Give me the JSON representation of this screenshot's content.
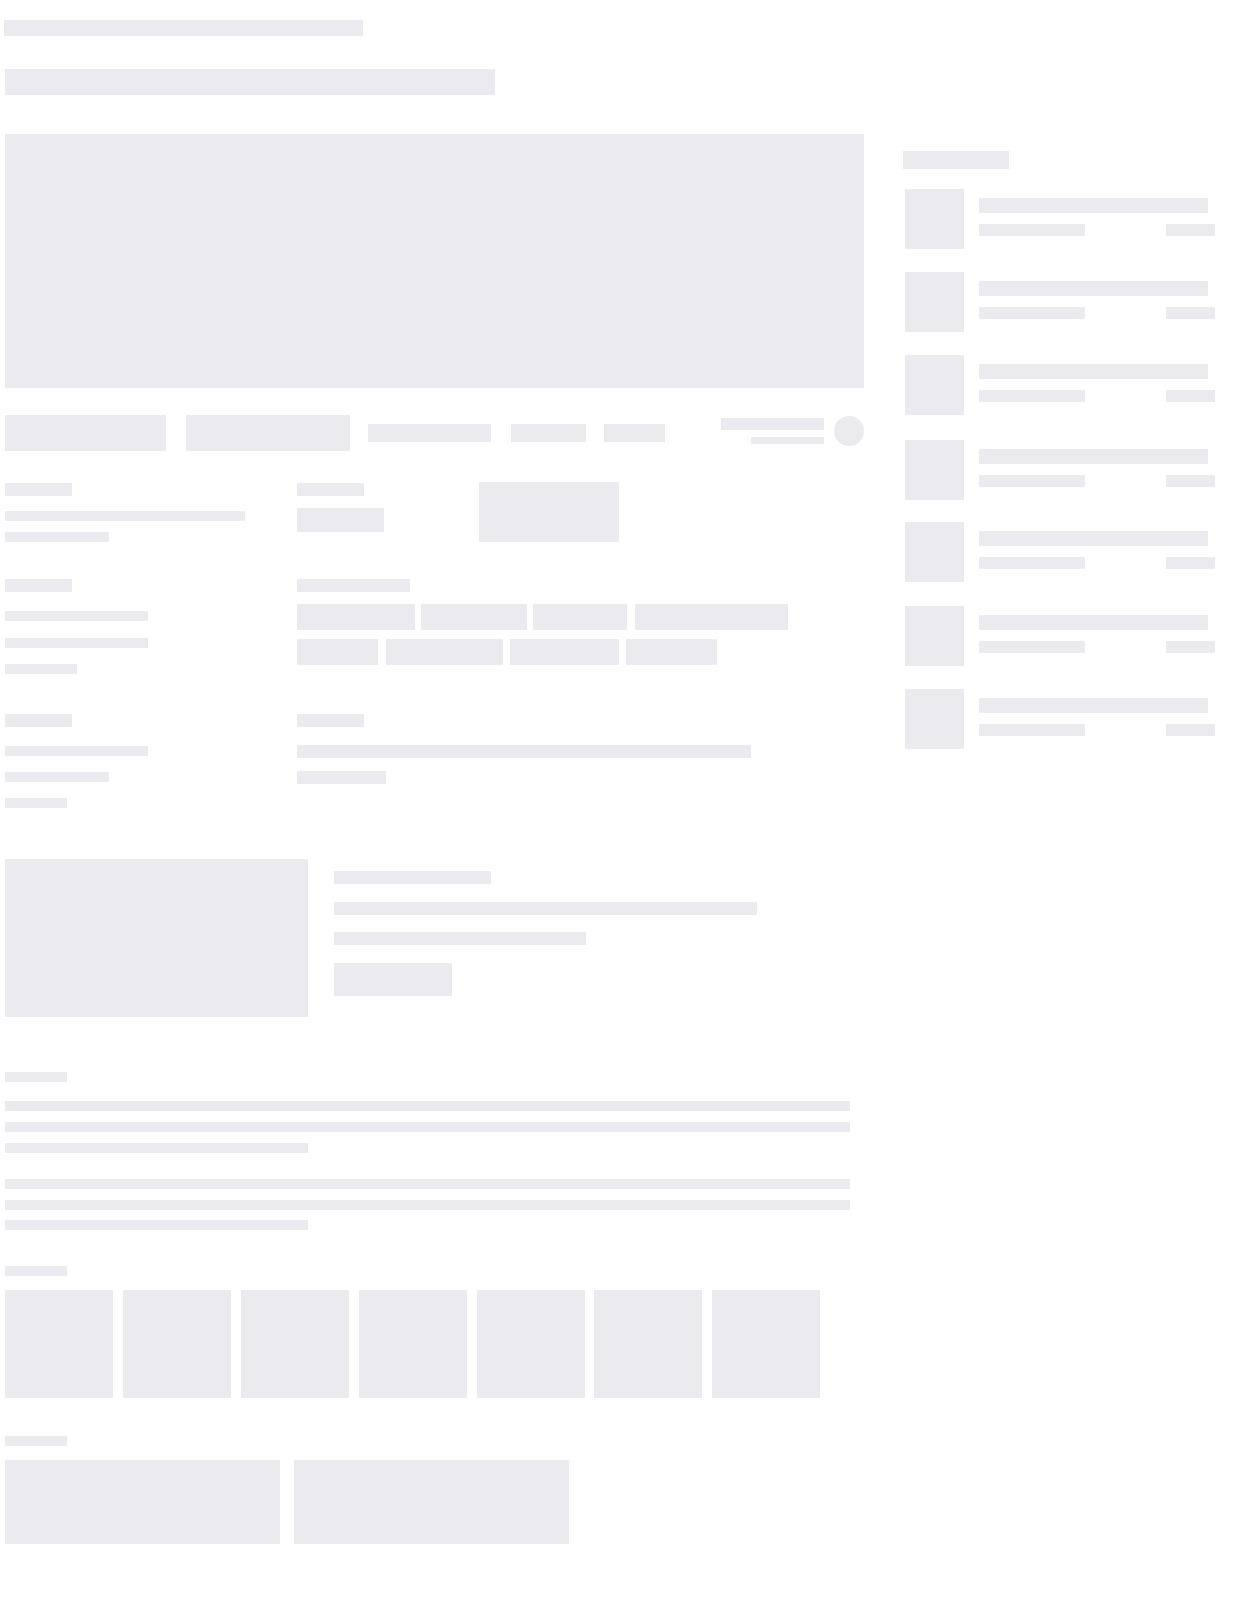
{
  "state": "loading-skeleton",
  "colors": {
    "skeleton": "#EBEAEF",
    "background": "#FFFFFF"
  }
}
